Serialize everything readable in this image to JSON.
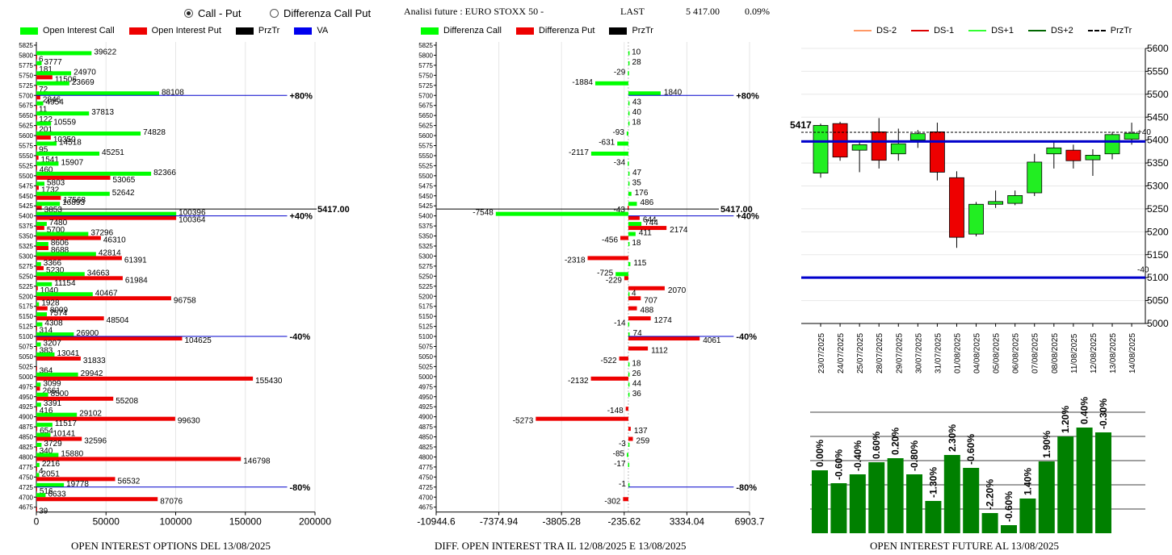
{
  "header": {
    "radio_call_put": "Call - Put",
    "radio_diff": "Differenza Call Put",
    "analysis_label": "Analisi future : EURO STOXX 50 -",
    "last_label": "LAST",
    "last_value": "5 417.00",
    "last_change": "0.09%"
  },
  "legends": {
    "oi": [
      "Open Interest Call",
      "Open Interest Put",
      "PrzTr",
      "VA"
    ],
    "diff": [
      "Differenza Call",
      "Differenza Put",
      "PrzTr"
    ],
    "candle": [
      "DS-2",
      "DS-1",
      "DS+1",
      "DS+2",
      "PrzTr"
    ]
  },
  "colors": {
    "call": "#00ff00",
    "put": "#ee0000",
    "va": "#0000cc",
    "bars": "#008000",
    "ds_minus2": "#ff9966",
    "ds_minus1": "#dd0000",
    "ds_plus1": "#33ff33",
    "ds_plus2": "#006600"
  },
  "captions": {
    "oi": "OPEN INTEREST OPTIONS DEL 13/08/2025",
    "diff": "DIFF. OPEN INTEREST TRA IL 12/08/2025 E 13/08/2025",
    "future": "OPEN INTEREST FUTURE AL 13/08/2025"
  },
  "chart_data": [
    {
      "type": "bar",
      "orientation": "horizontal",
      "categories": [
        5825,
        5800,
        5775,
        5750,
        5725,
        5700,
        5675,
        5650,
        5625,
        5600,
        5575,
        5550,
        5525,
        5500,
        5475,
        5450,
        5425,
        5400,
        5375,
        5350,
        5325,
        5300,
        5275,
        5250,
        5225,
        5200,
        5175,
        5150,
        5125,
        5100,
        5075,
        5050,
        5025,
        5000,
        4975,
        4950,
        4925,
        4900,
        4875,
        4850,
        4825,
        4800,
        4775,
        4750,
        4725,
        4700,
        4675
      ],
      "series": [
        {
          "name": "Open Interest Call",
          "values": [
            0,
            39622,
            3777,
            24970,
            23669,
            88108,
            4954,
            37813,
            10559,
            74828,
            14518,
            45251,
            15907,
            82366,
            5803,
            52642,
            16893,
            100396,
            7480,
            37296,
            8606,
            42814,
            3366,
            34663,
            11154,
            40467,
            1928,
            7574,
            4308,
            26900,
            3207,
            13041,
            0,
            29942,
            3099,
            8500,
            3391,
            29102,
            11517,
            10141,
            3729,
            15880,
            2216,
            2051,
            19778,
            6633,
            0
          ],
          "labels": [
            "",
            "39622",
            "3777",
            "24970",
            "23669",
            "88108",
            "4954",
            "37813",
            "10559",
            "74828",
            "14518",
            "45251",
            "15907",
            "82366",
            "5803",
            "52642",
            "16893",
            "100396",
            "7480",
            "37296",
            "8606",
            "42814",
            "3366",
            "34663",
            "11154",
            "40467",
            "1928",
            "7574",
            "4308",
            "26900",
            "3207",
            "13041",
            "",
            "29942",
            "3099",
            "8500",
            "3391",
            "29102",
            "11517",
            "10141",
            "3729",
            "15880",
            "2216",
            "2051",
            "19778",
            "6633",
            ""
          ]
        },
        {
          "name": "Open Interest Put",
          "values": [
            0,
            6,
            181,
            11506,
            72,
            2846,
            11,
            122,
            201,
            10350,
            95,
            1541,
            460,
            53065,
            1732,
            17568,
            3853,
            100364,
            5700,
            46310,
            8688,
            61391,
            5230,
            61984,
            1040,
            96758,
            8009,
            48504,
            314,
            104625,
            383,
            31833,
            364,
            155430,
            2661,
            55208,
            416,
            99630,
            654,
            32596,
            340,
            146798,
            4,
            56532,
            516,
            87076,
            39
          ],
          "labels": [
            "",
            "6",
            "181",
            "11506",
            "72",
            "2846",
            "11",
            "122",
            "201",
            "10350",
            "95",
            "1541",
            "460",
            "53065",
            "1732",
            "17568",
            "3853",
            "100364",
            "5700",
            "46310",
            "8688",
            "61391",
            "5230",
            "61984",
            "1040",
            "96758",
            "8009",
            "48504",
            "314",
            "104625",
            "383",
            "31833",
            "364",
            "155430",
            "2661",
            "55208",
            "416",
            "99630",
            "654",
            "32596",
            "340",
            "146798",
            "4",
            "56532",
            "516",
            "87076",
            "39"
          ]
        }
      ],
      "xticks": [
        0,
        50000,
        100000,
        150000,
        200000
      ],
      "xlim": [
        0,
        200000
      ],
      "przTr": {
        "value": 5417,
        "label": "5417.00"
      },
      "va_lines": [
        {
          "strike": 5700,
          "label": "+80%"
        },
        {
          "strike": 5400,
          "label": "+40%"
        },
        {
          "strike": 5100,
          "label": "-40%"
        },
        {
          "strike": 4725,
          "label": "-80%"
        }
      ],
      "va_end": 180000
    },
    {
      "type": "bar",
      "orientation": "horizontal",
      "categories": [
        5825,
        5800,
        5775,
        5750,
        5725,
        5700,
        5675,
        5650,
        5625,
        5600,
        5575,
        5550,
        5525,
        5500,
        5475,
        5450,
        5425,
        5400,
        5375,
        5350,
        5325,
        5300,
        5275,
        5250,
        5225,
        5200,
        5175,
        5150,
        5125,
        5100,
        5075,
        5050,
        5025,
        5000,
        4975,
        4950,
        4925,
        4900,
        4875,
        4850,
        4825,
        4800,
        4775,
        4750,
        4725,
        4700,
        4675
      ],
      "series": [
        {
          "name": "Differenza Call",
          "values": [
            0,
            10,
            28,
            -29,
            -1884,
            1840,
            43,
            40,
            18,
            -93,
            -631,
            -2117,
            -34,
            47,
            35,
            176,
            486,
            -7548,
            744,
            411,
            18,
            0,
            115,
            -725,
            0,
            4,
            0,
            0,
            -14,
            74,
            0,
            0,
            18,
            26,
            44,
            36,
            0,
            0,
            0,
            0,
            -3,
            -85,
            -17,
            0,
            -1,
            0,
            0
          ],
          "labels": [
            "",
            "10",
            "28",
            "-29",
            "-1884",
            "1840",
            "43",
            "40",
            "18",
            "-93",
            "-631",
            "-2117",
            "-34",
            "47",
            "35",
            "176",
            "486",
            "-7548",
            "744",
            "411",
            "18",
            "",
            "115",
            "-725",
            "",
            "4",
            "",
            "",
            "-14",
            "74",
            "",
            "",
            "18",
            "26",
            "44",
            "36",
            "",
            "",
            "",
            "",
            "-3",
            "-85",
            "-17",
            "",
            "-1",
            "",
            ""
          ]
        },
        {
          "name": "Differenza Put",
          "values": [
            0,
            0,
            0,
            0,
            0,
            0,
            0,
            0,
            0,
            0,
            0,
            0,
            0,
            0,
            0,
            0,
            -43,
            644,
            2174,
            -456,
            0,
            -2318,
            0,
            -229,
            2070,
            707,
            488,
            1274,
            0,
            4061,
            1112,
            -522,
            0,
            -2132,
            0,
            0,
            -148,
            -5273,
            137,
            259,
            0,
            0,
            0,
            0,
            0,
            -302,
            0
          ],
          "labels": [
            "",
            "",
            "",
            "",
            "",
            "",
            "",
            "",
            "",
            "",
            "",
            "",
            "",
            "",
            "",
            "",
            "-43",
            "644",
            "2174",
            "-456",
            "",
            "-2318",
            "",
            "-229",
            "2070",
            "707",
            "488",
            "1274",
            "",
            "4061",
            "1112",
            "-522",
            "",
            "-2132",
            "",
            "",
            "-148",
            "-5273",
            "137",
            "259",
            "",
            "",
            "",
            "",
            "",
            "-302",
            ""
          ]
        }
      ],
      "xticks": [
        -10944.6,
        -7374.94,
        -3805.28,
        -235.62,
        3334.04,
        6903.7
      ],
      "xtick_labels": [
        "-10944.6",
        "-7374.94",
        "-3805.28",
        "-235.62",
        "3334.04",
        "6903.7"
      ],
      "xlim": [
        -10944.6,
        6903.7
      ],
      "przTr": {
        "value": 5417,
        "label": "5417.00"
      },
      "va_lines": [
        {
          "strike": 5700,
          "label": "+80%"
        },
        {
          "strike": 5400,
          "label": "+40%"
        },
        {
          "strike": 5100,
          "label": "-40%"
        },
        {
          "strike": 4725,
          "label": "-80%"
        }
      ],
      "va_end": 6000
    },
    {
      "type": "candlestick",
      "x": [
        "23/07/2025",
        "24/07/2025",
        "25/07/2025",
        "28/07/2025",
        "29/07/2025",
        "30/07/2025",
        "31/07/2025",
        "01/08/2025",
        "04/08/2025",
        "05/08/2025",
        "06/08/2025",
        "07/08/2025",
        "08/08/2025",
        "11/08/2025",
        "12/08/2025",
        "13/08/2025",
        "14/08/2025"
      ],
      "open": [
        5432,
        5363,
        5378,
        5356,
        5370,
        5400,
        5418,
        5318,
        5195,
        5260,
        5262,
        5285,
        5370,
        5378,
        5357,
        5370,
        5402
      ],
      "close": [
        5328,
        5436,
        5390,
        5418,
        5392,
        5414,
        5330,
        5188,
        5260,
        5266,
        5279,
        5352,
        5383,
        5355,
        5367,
        5412,
        5415
      ],
      "high": [
        5436,
        5440,
        5395,
        5448,
        5425,
        5422,
        5438,
        5332,
        5265,
        5290,
        5290,
        5370,
        5395,
        5390,
        5380,
        5418,
        5438
      ],
      "low": [
        5318,
        5355,
        5330,
        5338,
        5355,
        5383,
        5312,
        5165,
        5190,
        5252,
        5258,
        5278,
        5338,
        5338,
        5322,
        5358,
        5390
      ],
      "bull": [
        true,
        false,
        true,
        false,
        true,
        true,
        false,
        false,
        true,
        true,
        true,
        true,
        true,
        false,
        true,
        true,
        true
      ],
      "ylim": [
        5000,
        5600
      ],
      "yticks": [
        5000,
        5050,
        5100,
        5150,
        5200,
        5250,
        5300,
        5350,
        5400,
        5450,
        5500,
        5550,
        5600
      ],
      "przTr": {
        "value": 5417,
        "label": "5417"
      },
      "va_lines": [
        5397,
        5100
      ],
      "side_labels": [
        {
          "value": 5417,
          "label": "+40"
        },
        {
          "value": 5117,
          "label": "-40"
        }
      ]
    },
    {
      "type": "bar",
      "categories": [
        "23/07/2025",
        "24/07/2025",
        "25/07/2025",
        "28/07/2025",
        "29/07/2025",
        "30/07/2025",
        "31/07/2025",
        "01/08/2025",
        "04/08/2025",
        "05/08/2025",
        "06/08/2025",
        "07/08/2025",
        "08/08/2025",
        "11/08/2025",
        "12/08/2025",
        "13/08/2025",
        "14/08/2025"
      ],
      "values": [
        0.0,
        -0.6,
        -0.4,
        0.6,
        0.2,
        -0.8,
        -1.3,
        2.3,
        -0.6,
        -2.2,
        -0.6,
        1.4,
        1.9,
        1.2,
        0.4,
        -0.3,
        0
      ],
      "labels": [
        "0.00%",
        "-0.60%",
        "-0.40%",
        "0.60%",
        "0.20%",
        "-0.80%",
        "-1.30%",
        "2.30%",
        "-0.60%",
        "-2.20%",
        "-0.60%",
        "1.40%",
        "1.90%",
        "1.20%",
        "0.40%",
        "-0.30%",
        ""
      ],
      "heights": [
        78,
        62,
        73,
        88,
        93,
        73,
        40,
        97,
        81,
        25,
        10,
        43,
        89,
        120,
        131,
        125,
        0
      ],
      "ymax": 150
    }
  ]
}
